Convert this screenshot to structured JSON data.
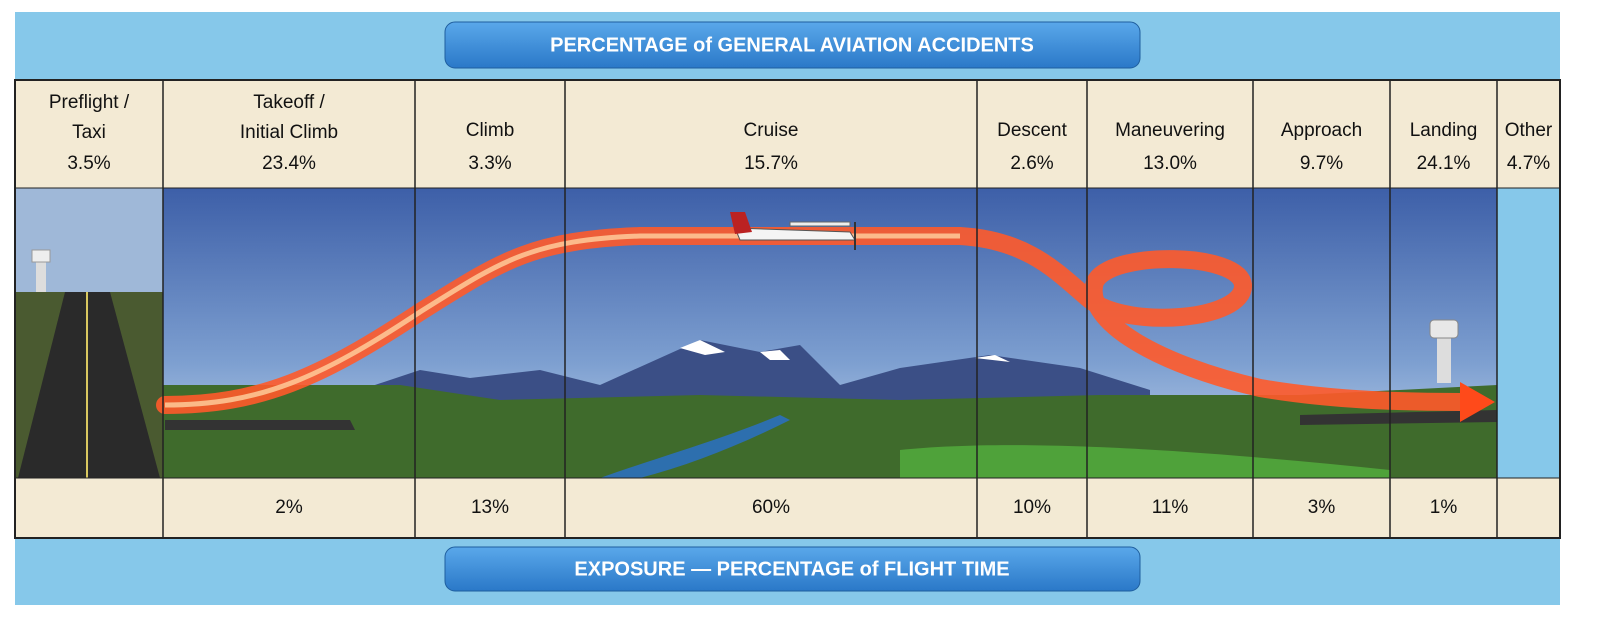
{
  "header": {
    "title": "PERCENTAGE of GENERAL AVIATION ACCIDENTS"
  },
  "footer": {
    "title": "EXPOSURE — PERCENTAGE of FLIGHT TIME"
  },
  "phases": [
    {
      "name": [
        "Preflight /",
        "Taxi"
      ],
      "accidents": "3.5%"
    },
    {
      "name": [
        "Takeoff /",
        "Initial Climb"
      ],
      "accidents": "23.4%",
      "exposure": "2%"
    },
    {
      "name": [
        "Climb"
      ],
      "accidents": "3.3%",
      "exposure": "13%"
    },
    {
      "name": [
        "Cruise"
      ],
      "accidents": "15.7%",
      "exposure": "60%"
    },
    {
      "name": [
        "Descent"
      ],
      "accidents": "2.6%",
      "exposure": "10%"
    },
    {
      "name": [
        "Maneuvering"
      ],
      "accidents": "13.0%",
      "exposure": "11%"
    },
    {
      "name": [
        "Approach"
      ],
      "accidents": "9.7%",
      "exposure": "3%"
    },
    {
      "name": [
        "Landing"
      ],
      "accidents": "24.1%",
      "exposure": "1%"
    },
    {
      "name": [
        "Other"
      ],
      "accidents": "4.7%"
    }
  ]
}
